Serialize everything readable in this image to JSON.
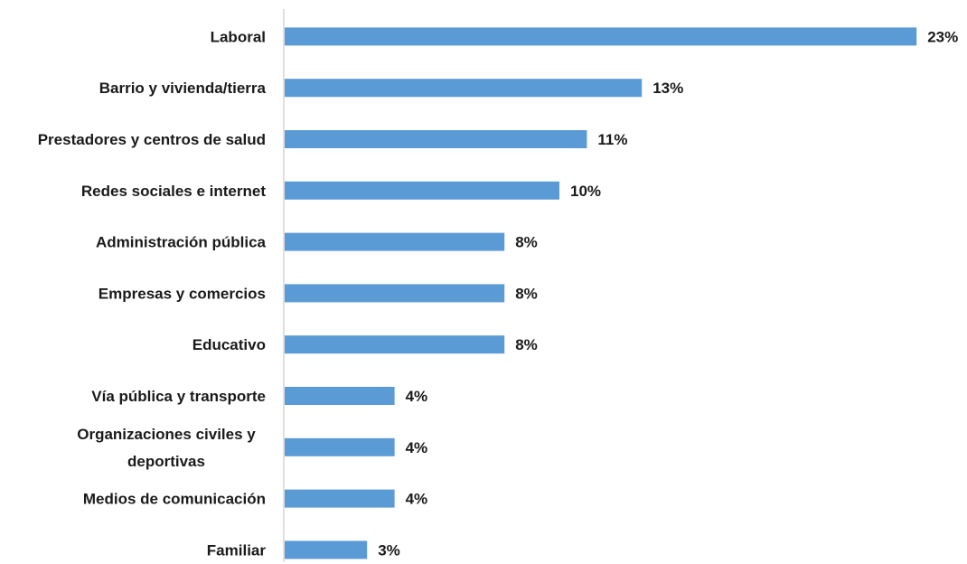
{
  "chart_data": {
    "type": "bar",
    "orientation": "horizontal",
    "categories": [
      "Laboral",
      "Barrio y vivienda/tierra",
      "Prestadores y centros de salud",
      "Redes sociales e internet",
      "Administración pública",
      "Empresas y comercios",
      "Educativo",
      "Vía pública y transporte",
      "Organizaciones civiles y deportivas",
      "Medios de comunicación",
      "Familiar"
    ],
    "category_lines": [
      [
        "Laboral"
      ],
      [
        "Barrio y vivienda/tierra"
      ],
      [
        "Prestadores y centros de salud"
      ],
      [
        "Redes sociales e internet"
      ],
      [
        "Administración pública"
      ],
      [
        "Empresas y comercios"
      ],
      [
        "Educativo"
      ],
      [
        "Vía pública y transporte"
      ],
      [
        "Organizaciones civiles y",
        "deportivas"
      ],
      [
        "Medios de comunicación"
      ],
      [
        "Familiar"
      ]
    ],
    "values": [
      23,
      13,
      11,
      10,
      8,
      8,
      8,
      4,
      4,
      4,
      3
    ],
    "value_labels": [
      "23%",
      "13%",
      "11%",
      "10%",
      "8%",
      "8%",
      "8%",
      "4%",
      "4%",
      "4%",
      "3%"
    ],
    "title": "",
    "xlabel": "",
    "ylabel": "",
    "unit": "%",
    "grid": false,
    "legend": "none",
    "bar_color": "#5B9BD5",
    "axis_color": "#BFBFBF",
    "text_color": "#1a1a1a"
  }
}
